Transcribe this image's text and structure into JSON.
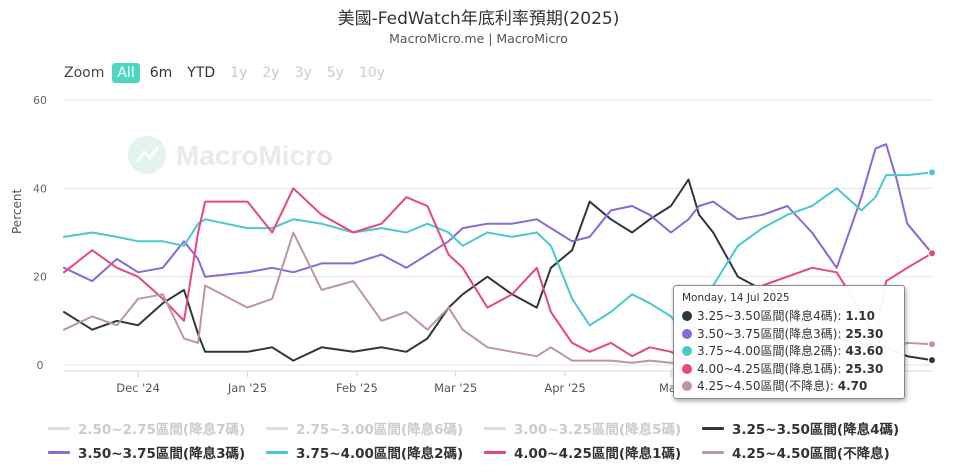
{
  "title": "美國-FedWatch年底利率預期(2025)",
  "subtitle": "MacroMicro.me | MacroMicro",
  "watermark": "MacroMicro",
  "zoom": {
    "label": "Zoom",
    "buttons": [
      {
        "label": "All",
        "state": "active"
      },
      {
        "label": "6m",
        "state": "enabled"
      },
      {
        "label": "YTD",
        "state": "enabled"
      },
      {
        "label": "1y",
        "state": "disabled"
      },
      {
        "label": "2y",
        "state": "disabled"
      },
      {
        "label": "3y",
        "state": "disabled"
      },
      {
        "label": "5y",
        "state": "disabled"
      },
      {
        "label": "10y",
        "state": "disabled"
      }
    ]
  },
  "tooltip": {
    "date": "Monday, 14 Jul 2025",
    "rows": [
      {
        "label": "3.25~3.50區間(降息4碼): ",
        "value": "1.10",
        "color": "#2f3640"
      },
      {
        "label": "3.50~3.75區間(降息3碼): ",
        "value": "25.30",
        "color": "#8a68d6"
      },
      {
        "label": "3.75~4.00區間(降息2碼): ",
        "value": "43.60",
        "color": "#4cc8cc"
      },
      {
        "label": "4.00~4.25區間(降息1碼): ",
        "value": "25.30",
        "color": "#e5487c"
      },
      {
        "label": "4.25~4.50區間(不降息): ",
        "value": "4.70",
        "color": "#bb96a6"
      }
    ]
  },
  "legend_rows": [
    [
      {
        "label": "2.50~2.75區間(降息7碼)",
        "color": "#cccccc",
        "visible": false
      },
      {
        "label": "2.75~3.00區間(降息6碼)",
        "color": "#cccccc",
        "visible": false
      },
      {
        "label": "3.00~3.25區間(降息5碼)",
        "color": "#cccccc",
        "visible": false
      },
      {
        "label": "3.25~3.50區間(降息4碼)",
        "color": "#2f3640",
        "visible": true
      }
    ],
    [
      {
        "label": "3.50~3.75區間(降息3碼)",
        "color": "#8a68d6",
        "visible": true
      },
      {
        "label": "3.75~4.00區間(降息2碼)",
        "color": "#4cc8cc",
        "visible": true
      },
      {
        "label": "4.00~4.25區間(降息1碼)",
        "color": "#e5487c",
        "visible": true
      },
      {
        "label": "4.25~4.50區間(不降息)",
        "color": "#bb96a6",
        "visible": true
      }
    ]
  ],
  "chart_data": {
    "type": "line",
    "title": "美國-FedWatch年底利率預期(2025)",
    "ylabel": "Percent",
    "xlabel": "",
    "ylim": [
      0,
      60
    ],
    "yticks": [
      0,
      20,
      40,
      60
    ],
    "xlim": [
      "2024-11-10",
      "2025-07-14"
    ],
    "xticks": [
      {
        "date": "2024-12-01",
        "label": "Dec '24"
      },
      {
        "date": "2025-01-01",
        "label": "Jan '25"
      },
      {
        "date": "2025-02-01",
        "label": "Feb '25"
      },
      {
        "date": "2025-03-01",
        "label": "Mar '25"
      },
      {
        "date": "2025-04-01",
        "label": "Apr '25"
      },
      {
        "date": "2025-05-01",
        "label": "May"
      }
    ],
    "series": [
      {
        "name": "3.25~3.50區間(降息4碼)",
        "color": "#2f3640",
        "points": [
          [
            "2024-11-10",
            12
          ],
          [
            "2024-11-18",
            8
          ],
          [
            "2024-11-25",
            10
          ],
          [
            "2024-12-01",
            9
          ],
          [
            "2024-12-08",
            14
          ],
          [
            "2024-12-14",
            17
          ],
          [
            "2024-12-18",
            7
          ],
          [
            "2024-12-20",
            3
          ],
          [
            "2025-01-01",
            3
          ],
          [
            "2025-01-08",
            4
          ],
          [
            "2025-01-14",
            1
          ],
          [
            "2025-01-22",
            4
          ],
          [
            "2025-01-31",
            3
          ],
          [
            "2025-02-08",
            4
          ],
          [
            "2025-02-15",
            3
          ],
          [
            "2025-02-21",
            6
          ],
          [
            "2025-02-27",
            13
          ],
          [
            "2025-03-03",
            16
          ],
          [
            "2025-03-10",
            20
          ],
          [
            "2025-03-17",
            16
          ],
          [
            "2025-03-24",
            13
          ],
          [
            "2025-03-28",
            22
          ],
          [
            "2025-04-03",
            26
          ],
          [
            "2025-04-08",
            37
          ],
          [
            "2025-04-14",
            33
          ],
          [
            "2025-04-20",
            30
          ],
          [
            "2025-04-25",
            33
          ],
          [
            "2025-05-01",
            36
          ],
          [
            "2025-05-06",
            42
          ],
          [
            "2025-05-09",
            34
          ],
          [
            "2025-05-13",
            30
          ],
          [
            "2025-05-20",
            20
          ],
          [
            "2025-05-27",
            17
          ],
          [
            "2025-06-03",
            12
          ],
          [
            "2025-06-10",
            8
          ],
          [
            "2025-06-17",
            6
          ],
          [
            "2025-06-24",
            5
          ],
          [
            "2025-07-01",
            4
          ],
          [
            "2025-07-07",
            2
          ],
          [
            "2025-07-14",
            1.1
          ]
        ]
      },
      {
        "name": "3.50~3.75區間(降息3碼)",
        "color": "#8a68d6",
        "points": [
          [
            "2024-11-10",
            22
          ],
          [
            "2024-11-18",
            19
          ],
          [
            "2024-11-25",
            24
          ],
          [
            "2024-12-01",
            21
          ],
          [
            "2024-12-08",
            22
          ],
          [
            "2024-12-14",
            28
          ],
          [
            "2024-12-18",
            24
          ],
          [
            "2024-12-20",
            20
          ],
          [
            "2025-01-01",
            21
          ],
          [
            "2025-01-08",
            22
          ],
          [
            "2025-01-14",
            21
          ],
          [
            "2025-01-22",
            23
          ],
          [
            "2025-01-31",
            23
          ],
          [
            "2025-02-08",
            25
          ],
          [
            "2025-02-15",
            22
          ],
          [
            "2025-02-21",
            25
          ],
          [
            "2025-02-27",
            28
          ],
          [
            "2025-03-03",
            31
          ],
          [
            "2025-03-10",
            32
          ],
          [
            "2025-03-17",
            32
          ],
          [
            "2025-03-24",
            33
          ],
          [
            "2025-03-28",
            31
          ],
          [
            "2025-04-03",
            28
          ],
          [
            "2025-04-08",
            29
          ],
          [
            "2025-04-14",
            35
          ],
          [
            "2025-04-20",
            36
          ],
          [
            "2025-04-25",
            34
          ],
          [
            "2025-05-01",
            30
          ],
          [
            "2025-05-06",
            33
          ],
          [
            "2025-05-09",
            36
          ],
          [
            "2025-05-13",
            37
          ],
          [
            "2025-05-20",
            33
          ],
          [
            "2025-05-27",
            34
          ],
          [
            "2025-06-03",
            36
          ],
          [
            "2025-06-10",
            30
          ],
          [
            "2025-06-17",
            22
          ],
          [
            "2025-06-24",
            38
          ],
          [
            "2025-06-28",
            49
          ],
          [
            "2025-07-01",
            50
          ],
          [
            "2025-07-04",
            42
          ],
          [
            "2025-07-07",
            32
          ],
          [
            "2025-07-14",
            25.3
          ]
        ]
      },
      {
        "name": "3.75~4.00區間(降息2碼)",
        "color": "#4cc8cc",
        "points": [
          [
            "2024-11-10",
            29
          ],
          [
            "2024-11-18",
            30
          ],
          [
            "2024-11-25",
            29
          ],
          [
            "2024-12-01",
            28
          ],
          [
            "2024-12-08",
            28
          ],
          [
            "2024-12-14",
            27
          ],
          [
            "2024-12-18",
            32
          ],
          [
            "2024-12-20",
            33
          ],
          [
            "2025-01-01",
            31
          ],
          [
            "2025-01-08",
            31
          ],
          [
            "2025-01-14",
            33
          ],
          [
            "2025-01-22",
            32
          ],
          [
            "2025-01-31",
            30
          ],
          [
            "2025-02-08",
            31
          ],
          [
            "2025-02-15",
            30
          ],
          [
            "2025-02-21",
            32
          ],
          [
            "2025-02-27",
            30
          ],
          [
            "2025-03-03",
            27
          ],
          [
            "2025-03-10",
            30
          ],
          [
            "2025-03-17",
            29
          ],
          [
            "2025-03-24",
            30
          ],
          [
            "2025-03-28",
            27
          ],
          [
            "2025-04-03",
            15
          ],
          [
            "2025-04-08",
            9
          ],
          [
            "2025-04-14",
            12
          ],
          [
            "2025-04-20",
            16
          ],
          [
            "2025-04-25",
            14
          ],
          [
            "2025-05-01",
            11
          ],
          [
            "2025-05-06",
            6
          ],
          [
            "2025-05-09",
            12
          ],
          [
            "2025-05-13",
            18
          ],
          [
            "2025-05-20",
            27
          ],
          [
            "2025-05-27",
            31
          ],
          [
            "2025-06-03",
            34
          ],
          [
            "2025-06-10",
            36
          ],
          [
            "2025-06-17",
            40
          ],
          [
            "2025-06-24",
            35
          ],
          [
            "2025-06-28",
            38
          ],
          [
            "2025-07-01",
            43
          ],
          [
            "2025-07-07",
            43
          ],
          [
            "2025-07-14",
            43.6
          ]
        ]
      },
      {
        "name": "4.00~4.25區間(降息1碼)",
        "color": "#e5487c",
        "points": [
          [
            "2024-11-10",
            21
          ],
          [
            "2024-11-18",
            26
          ],
          [
            "2024-11-25",
            22
          ],
          [
            "2024-12-01",
            20
          ],
          [
            "2024-12-08",
            15
          ],
          [
            "2024-12-14",
            10
          ],
          [
            "2024-12-18",
            30
          ],
          [
            "2024-12-20",
            37
          ],
          [
            "2025-01-01",
            37
          ],
          [
            "2025-01-08",
            30
          ],
          [
            "2025-01-14",
            40
          ],
          [
            "2025-01-22",
            34
          ],
          [
            "2025-01-31",
            30
          ],
          [
            "2025-02-08",
            32
          ],
          [
            "2025-02-15",
            38
          ],
          [
            "2025-02-21",
            36
          ],
          [
            "2025-02-27",
            25
          ],
          [
            "2025-03-03",
            22
          ],
          [
            "2025-03-10",
            13
          ],
          [
            "2025-03-17",
            16
          ],
          [
            "2025-03-24",
            22
          ],
          [
            "2025-03-28",
            12
          ],
          [
            "2025-04-03",
            5
          ],
          [
            "2025-04-08",
            3
          ],
          [
            "2025-04-14",
            5
          ],
          [
            "2025-04-20",
            2
          ],
          [
            "2025-04-25",
            4
          ],
          [
            "2025-05-01",
            3
          ],
          [
            "2025-05-06",
            1
          ],
          [
            "2025-05-09",
            3
          ],
          [
            "2025-05-13",
            8
          ],
          [
            "2025-05-20",
            14
          ],
          [
            "2025-05-27",
            18
          ],
          [
            "2025-06-03",
            20
          ],
          [
            "2025-06-10",
            22
          ],
          [
            "2025-06-17",
            21
          ],
          [
            "2025-06-24",
            12
          ],
          [
            "2025-06-28",
            6
          ],
          [
            "2025-07-01",
            19
          ],
          [
            "2025-07-07",
            22
          ],
          [
            "2025-07-14",
            25.3
          ]
        ]
      },
      {
        "name": "4.25~4.50區間(不降息)",
        "color": "#bb96a6",
        "points": [
          [
            "2024-11-10",
            8
          ],
          [
            "2024-11-18",
            11
          ],
          [
            "2024-11-25",
            9
          ],
          [
            "2024-12-01",
            15
          ],
          [
            "2024-12-08",
            16
          ],
          [
            "2024-12-14",
            6
          ],
          [
            "2024-12-18",
            5
          ],
          [
            "2024-12-20",
            18
          ],
          [
            "2025-01-01",
            13
          ],
          [
            "2025-01-08",
            15
          ],
          [
            "2025-01-14",
            30
          ],
          [
            "2025-01-22",
            17
          ],
          [
            "2025-01-31",
            19
          ],
          [
            "2025-02-08",
            10
          ],
          [
            "2025-02-15",
            12
          ],
          [
            "2025-02-21",
            8
          ],
          [
            "2025-02-27",
            13
          ],
          [
            "2025-03-03",
            8
          ],
          [
            "2025-03-10",
            4
          ],
          [
            "2025-03-17",
            3
          ],
          [
            "2025-03-24",
            2
          ],
          [
            "2025-03-28",
            4
          ],
          [
            "2025-04-03",
            1
          ],
          [
            "2025-04-08",
            1
          ],
          [
            "2025-04-14",
            1
          ],
          [
            "2025-04-20",
            0.5
          ],
          [
            "2025-04-25",
            1
          ],
          [
            "2025-05-01",
            0.5
          ],
          [
            "2025-05-06",
            0.3
          ],
          [
            "2025-05-09",
            0.5
          ],
          [
            "2025-05-13",
            1
          ],
          [
            "2025-05-20",
            2
          ],
          [
            "2025-05-27",
            3
          ],
          [
            "2025-06-03",
            3
          ],
          [
            "2025-06-10",
            4
          ],
          [
            "2025-06-17",
            4
          ],
          [
            "2025-06-24",
            2
          ],
          [
            "2025-06-28",
            1
          ],
          [
            "2025-07-01",
            3
          ],
          [
            "2025-07-07",
            5
          ],
          [
            "2025-07-14",
            4.7
          ]
        ]
      }
    ]
  }
}
